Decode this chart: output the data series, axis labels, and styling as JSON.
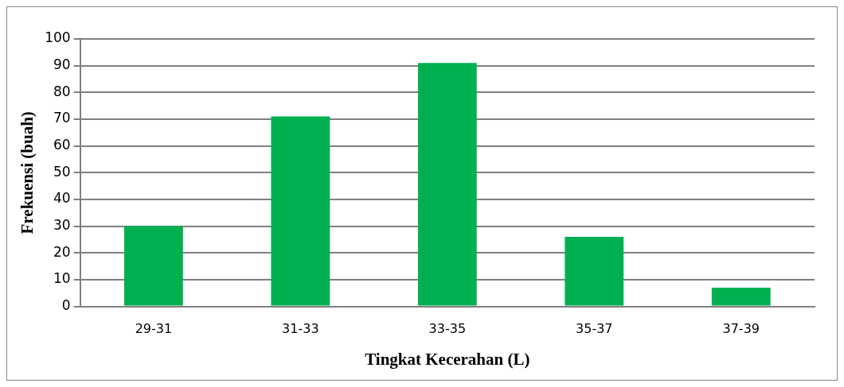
{
  "chart_data": {
    "type": "bar",
    "xlabel": "Tingkat Kecerahan (L)",
    "ylabel": "Frekuensi (buah)",
    "categories": [
      "29-31",
      "31-33",
      "33-35",
      "35-37",
      "37-39"
    ],
    "values": [
      30,
      71,
      91,
      26,
      7
    ],
    "color": "#00b050",
    "ylim": [
      0,
      100
    ],
    "yticks": [
      0,
      10,
      20,
      30,
      40,
      50,
      60,
      70,
      80,
      90,
      100
    ],
    "grid": "y",
    "legend": false
  }
}
